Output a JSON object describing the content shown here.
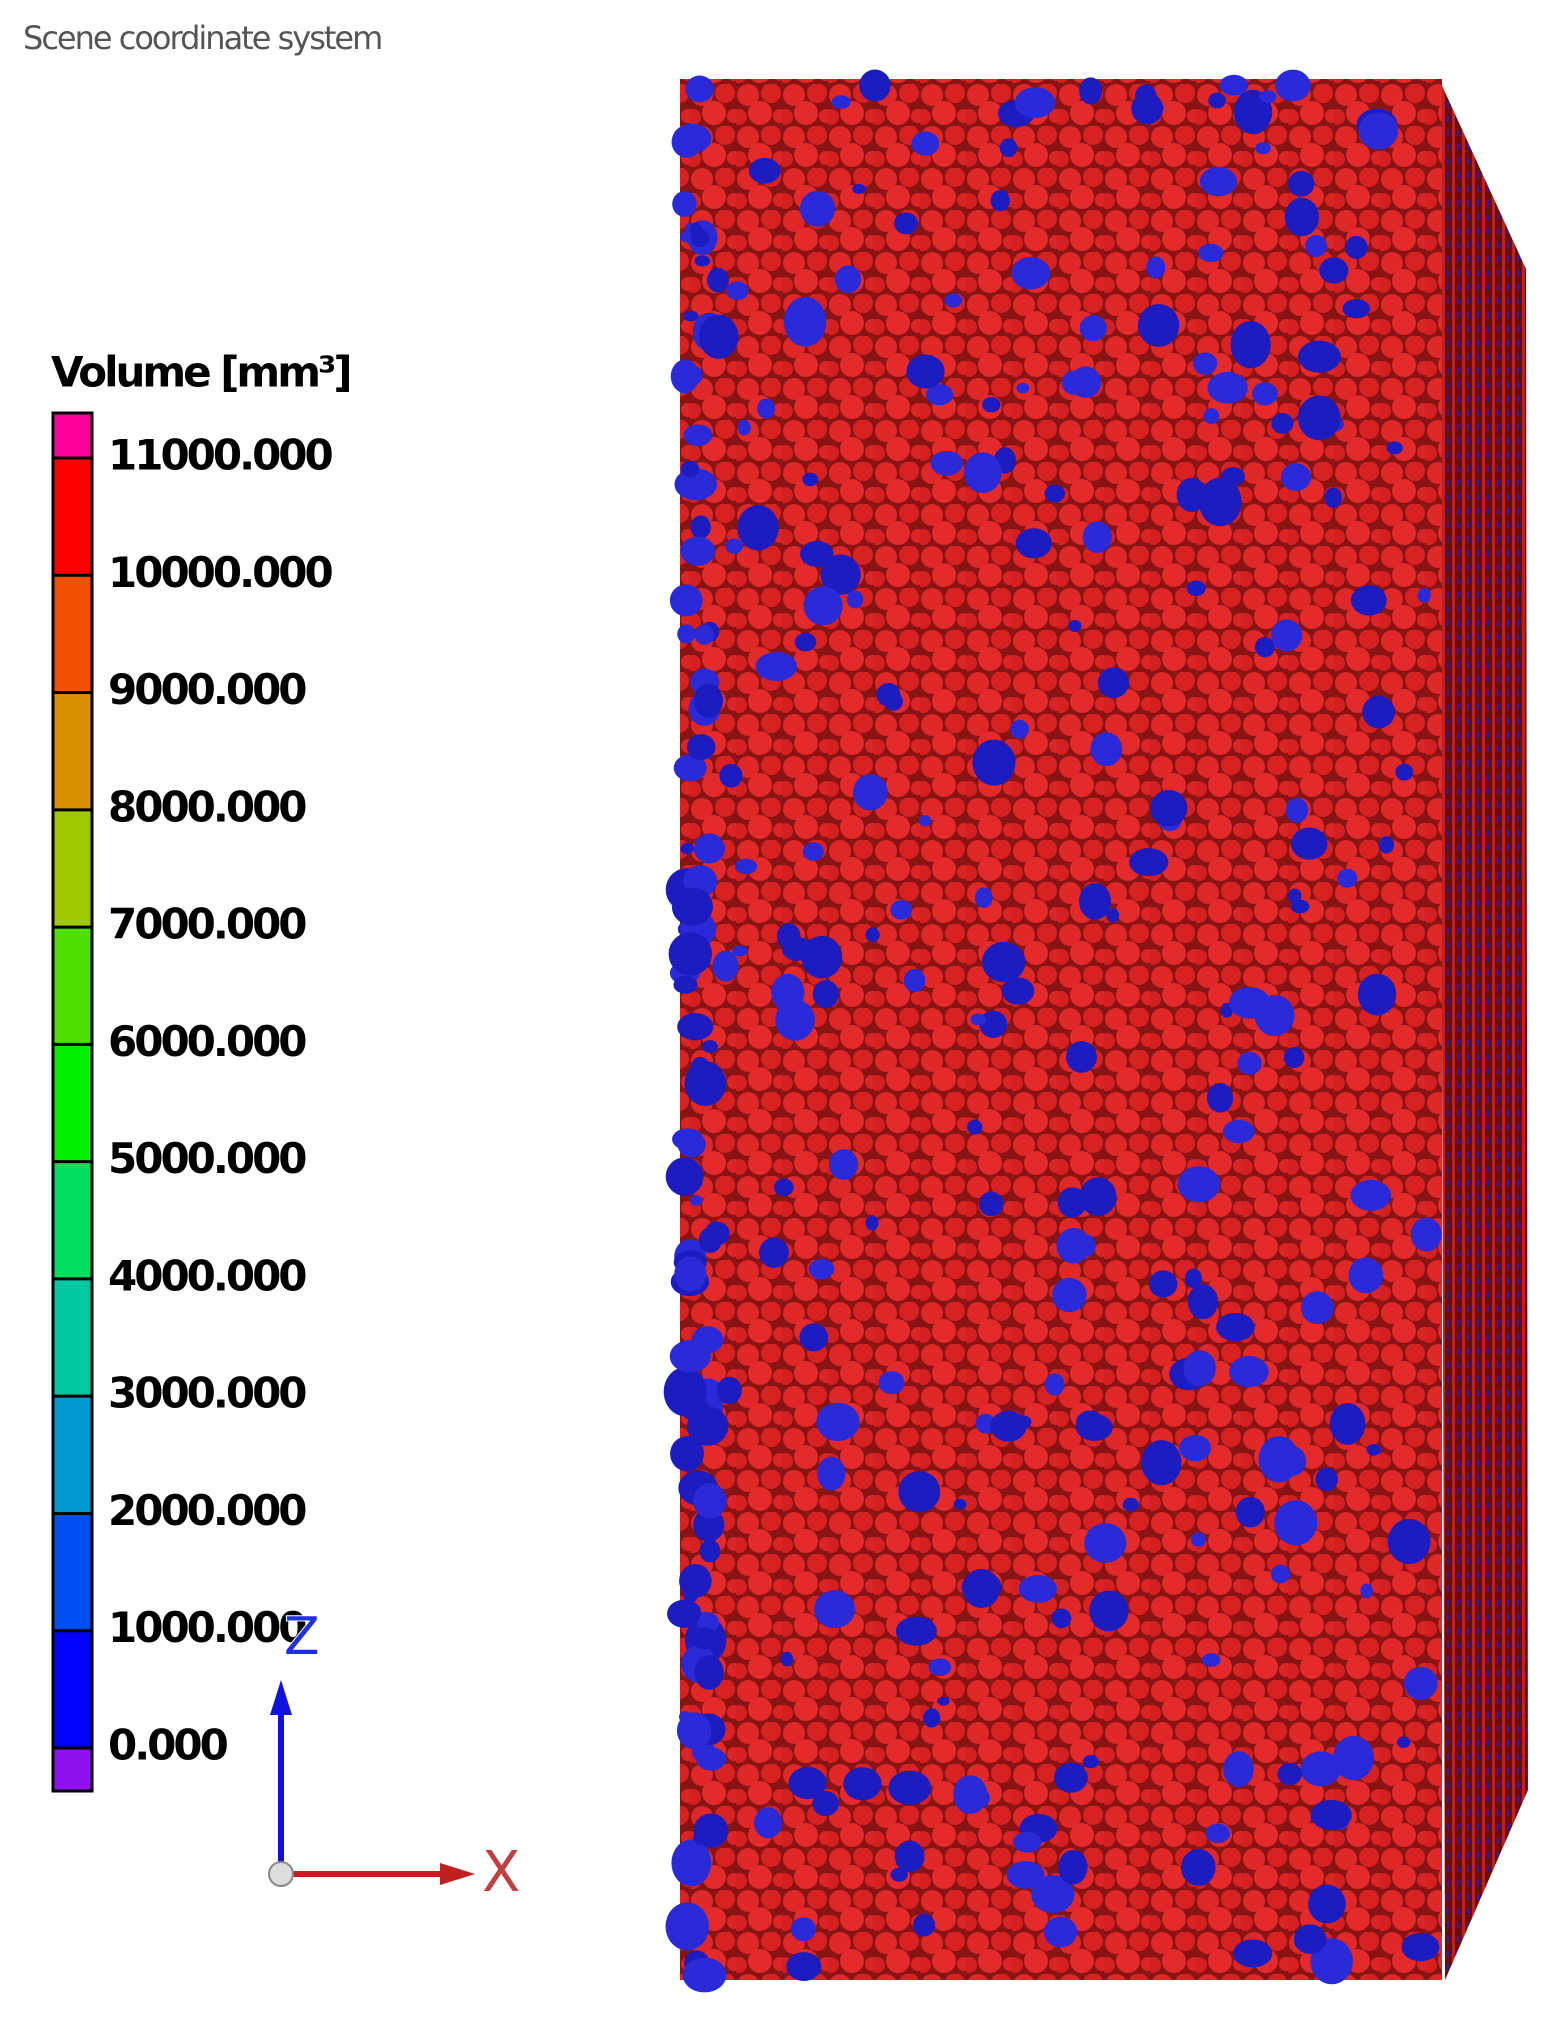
{
  "header": {
    "title": "Scene coordinate system"
  },
  "legend": {
    "title": "Volume [mm³]",
    "ticks": [
      {
        "value": 11000,
        "label": "11000.000"
      },
      {
        "value": 10000,
        "label": "10000.000"
      },
      {
        "value": 9000,
        "label": "9000.000"
      },
      {
        "value": 8000,
        "label": "8000.000"
      },
      {
        "value": 7000,
        "label": "7000.000"
      },
      {
        "value": 6000,
        "label": "6000.000"
      },
      {
        "value": 5000,
        "label": "5000.000"
      },
      {
        "value": 4000,
        "label": "4000.000"
      },
      {
        "value": 3000,
        "label": "3000.000"
      },
      {
        "value": 2000,
        "label": "2000.000"
      },
      {
        "value": 1000,
        "label": "1000.000"
      },
      {
        "value": 0,
        "label": "0.000"
      }
    ],
    "colors": [
      "#ff0098",
      "#ff0000",
      "#f05000",
      "#d89000",
      "#a0c800",
      "#50e000",
      "#00f000",
      "#00e060",
      "#00c8a0",
      "#0098d0",
      "#0050f0",
      "#0000ff",
      "#9010f0"
    ]
  },
  "axes": {
    "z": "Z",
    "x": "X"
  }
}
